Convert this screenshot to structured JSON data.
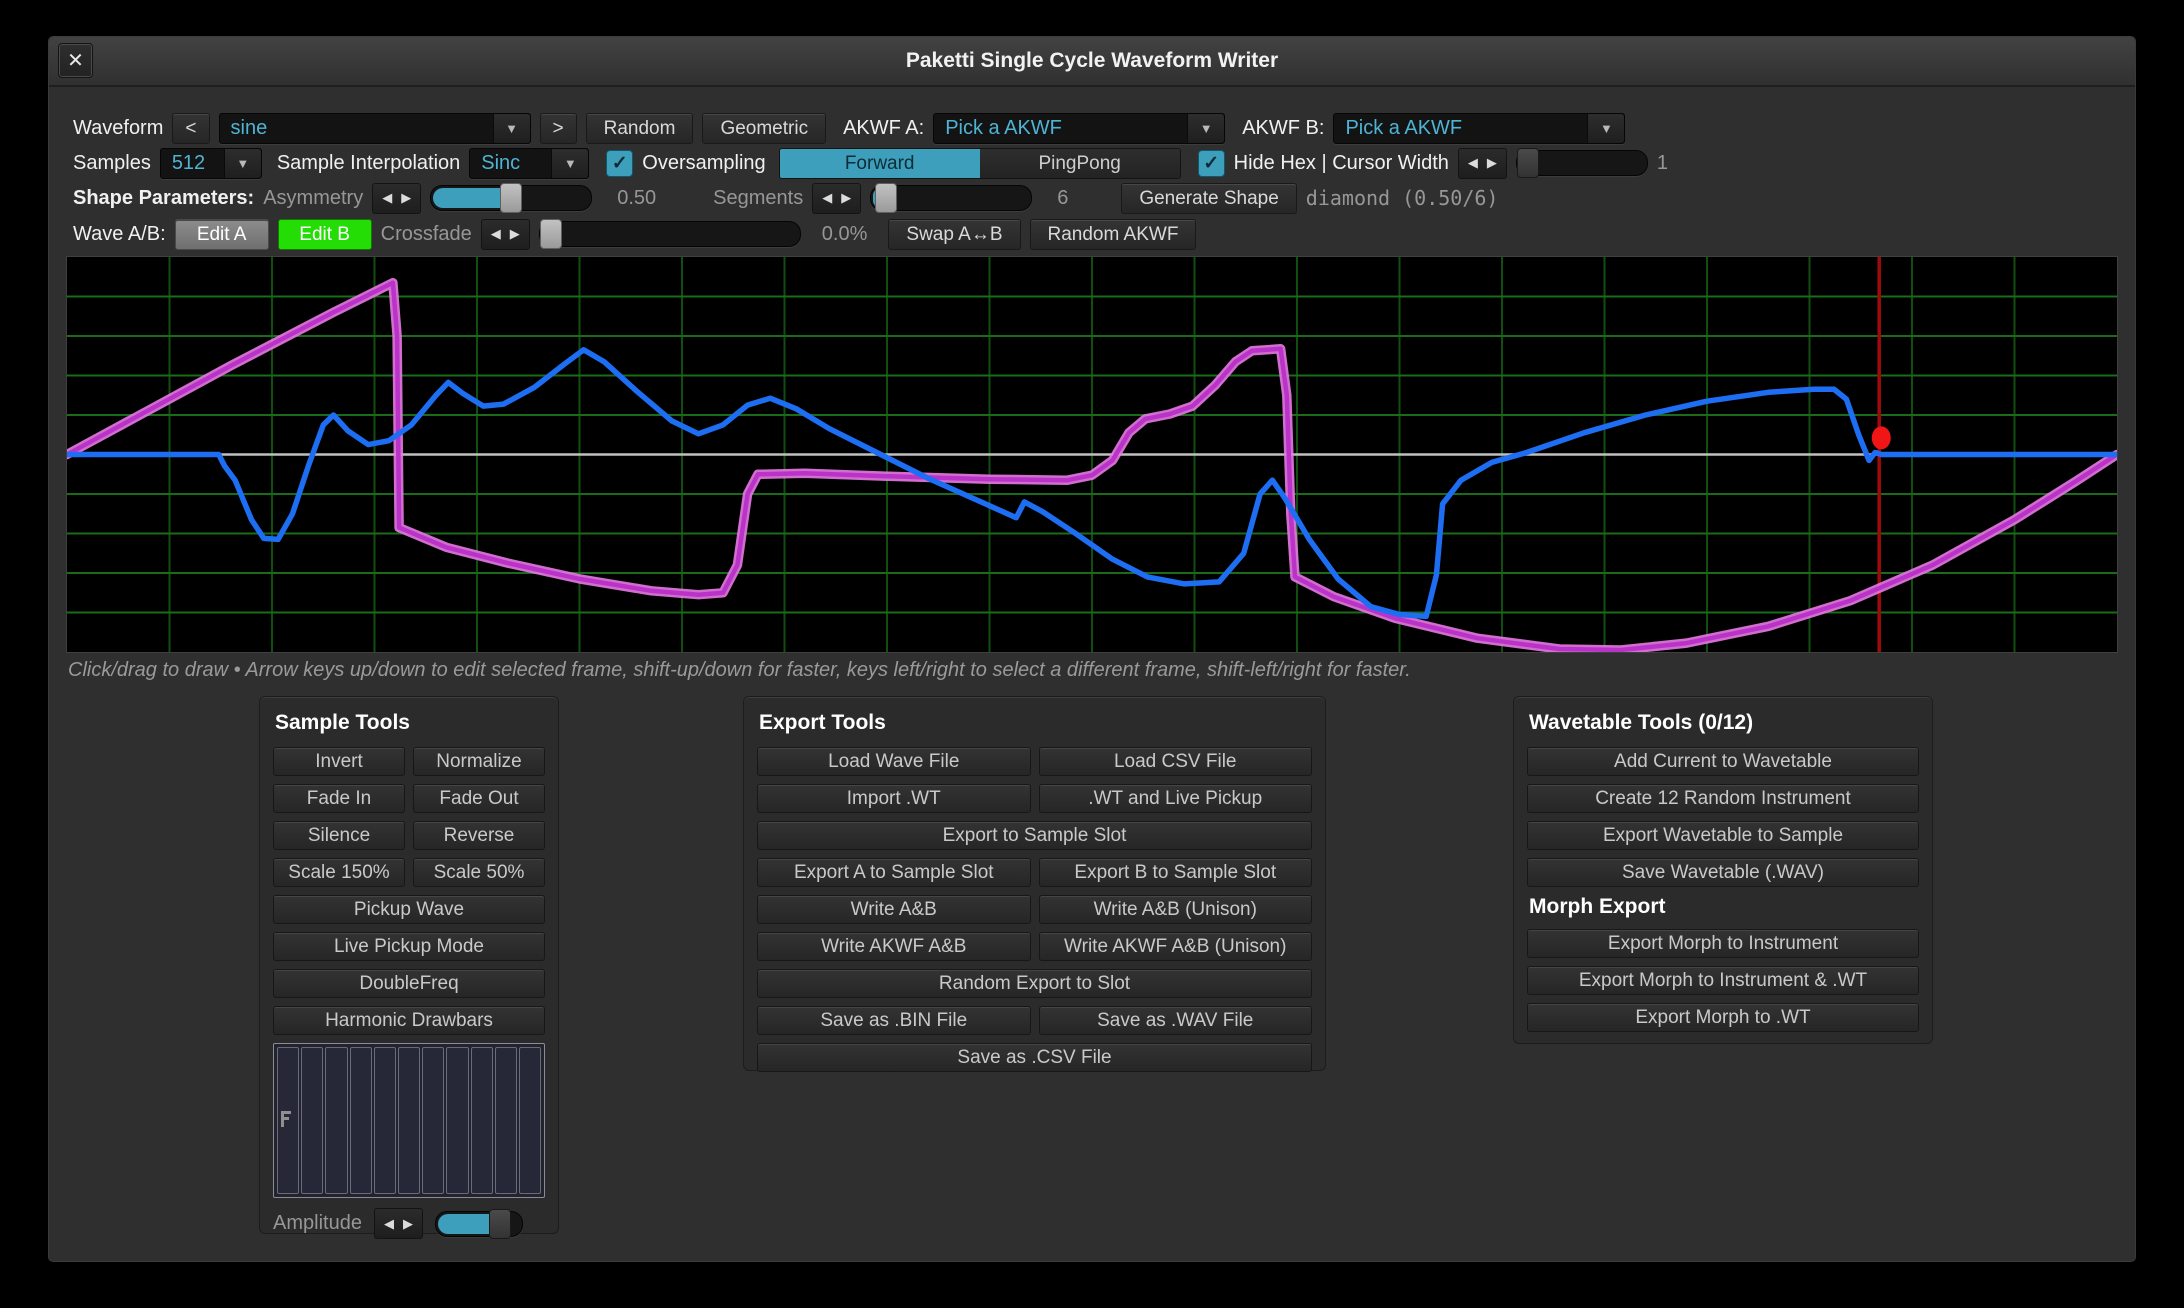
{
  "window": {
    "title": "Paketti Single Cycle Waveform Writer",
    "close_icon": "✕"
  },
  "icons": {
    "dropdown_arrow": "▼",
    "arrow_left": "◀",
    "arrow_right": "▶",
    "check": "✓",
    "prev": "<",
    "next": ">"
  },
  "colors": {
    "accent_teal": "#3d9fbc",
    "value_cyan": "#4fb4d4",
    "edit_a_gray": "#7e7e7e",
    "edit_b_green": "#23dd04",
    "wave_a_blue": "#1d6ef2",
    "wave_b_core": "#b933c9",
    "wave_b_glow": "#e87ae4",
    "cursor_red": "#a00a0a",
    "dot_red": "#f21515",
    "grid_h_green": "#1a6b1a",
    "grid_v_green": "#114f11",
    "center_line": "#c0c0c0"
  },
  "toolbar": {
    "row1": {
      "waveform_label": "Waveform",
      "prev": "<",
      "waveform_value": "sine",
      "next": ">",
      "random": "Random",
      "geometric": "Geometric",
      "akwf_a_label": "AKWF A:",
      "akwf_a_value": "Pick a AKWF",
      "akwf_b_label": "AKWF B:",
      "akwf_b_value": "Pick a AKWF"
    },
    "row2": {
      "samples_label": "Samples",
      "samples_value": "512",
      "interp_label": "Sample Interpolation",
      "interp_value": "Sinc",
      "oversampling_label": "Oversampling",
      "forward": "Forward",
      "pingpong": "PingPong",
      "hidehex_label": "Hide Hex | Cursor Width",
      "cursor_width_value": "1"
    },
    "row3": {
      "label": "Shape Parameters:",
      "asymmetry_label": "Asymmetry",
      "asymmetry_value": "0.50",
      "segments_label": "Segments",
      "segments_value": "6",
      "generate": "Generate Shape",
      "shape_info": "diamond (0.50/6)"
    },
    "row4": {
      "label": "Wave A/B:",
      "edit_a": "Edit A",
      "edit_b": "Edit B",
      "crossfade_label": "Crossfade",
      "crossfade_value": "0.0%",
      "swap": "Swap A↔B",
      "random_akwf": "Random AKWF"
    }
  },
  "sliders": {
    "cursor_width": 0.0,
    "asymmetry": 0.5,
    "segments": 0.09,
    "crossfade": 0.0,
    "amplitude": 0.75
  },
  "canvas": {
    "hint": "Click/drag to draw • Arrow keys up/down to edit selected frame, shift-up/down for faster, keys left/right to select a different frame, shift-left/right for faster.",
    "grid_cols": 20,
    "grid_rows": 10,
    "cursor_x": 0.884,
    "dot": {
      "x": 0.885,
      "amp": 0.084
    },
    "wave_a_points": [
      [
        0.0,
        0.0
      ],
      [
        0.074,
        0.0
      ],
      [
        0.077,
        -0.06
      ],
      [
        0.082,
        -0.13
      ],
      [
        0.09,
        -0.33
      ],
      [
        0.096,
        -0.425
      ],
      [
        0.103,
        -0.43
      ],
      [
        0.11,
        -0.3
      ],
      [
        0.118,
        -0.05
      ],
      [
        0.125,
        0.15
      ],
      [
        0.13,
        0.2
      ],
      [
        0.137,
        0.12
      ],
      [
        0.147,
        0.05
      ],
      [
        0.157,
        0.07
      ],
      [
        0.168,
        0.15
      ],
      [
        0.18,
        0.3
      ],
      [
        0.186,
        0.365
      ],
      [
        0.193,
        0.31
      ],
      [
        0.203,
        0.245
      ],
      [
        0.213,
        0.255
      ],
      [
        0.228,
        0.34
      ],
      [
        0.243,
        0.46
      ],
      [
        0.252,
        0.53
      ],
      [
        0.262,
        0.47
      ],
      [
        0.278,
        0.32
      ],
      [
        0.295,
        0.17
      ],
      [
        0.308,
        0.105
      ],
      [
        0.32,
        0.15
      ],
      [
        0.332,
        0.25
      ],
      [
        0.343,
        0.285
      ],
      [
        0.356,
        0.23
      ],
      [
        0.372,
        0.13
      ],
      [
        0.395,
        0.01
      ],
      [
        0.42,
        -0.12
      ],
      [
        0.448,
        -0.25
      ],
      [
        0.463,
        -0.32
      ],
      [
        0.467,
        -0.24
      ],
      [
        0.476,
        -0.29
      ],
      [
        0.492,
        -0.4
      ],
      [
        0.51,
        -0.53
      ],
      [
        0.527,
        -0.62
      ],
      [
        0.545,
        -0.655
      ],
      [
        0.562,
        -0.645
      ],
      [
        0.574,
        -0.5
      ],
      [
        0.582,
        -0.2
      ],
      [
        0.588,
        -0.13
      ],
      [
        0.594,
        -0.22
      ],
      [
        0.606,
        -0.43
      ],
      [
        0.62,
        -0.63
      ],
      [
        0.636,
        -0.77
      ],
      [
        0.65,
        -0.81
      ],
      [
        0.663,
        -0.82
      ],
      [
        0.668,
        -0.61
      ],
      [
        0.671,
        -0.25
      ],
      [
        0.68,
        -0.13
      ],
      [
        0.695,
        -0.04
      ],
      [
        0.712,
        0.01
      ],
      [
        0.74,
        0.11
      ],
      [
        0.77,
        0.2
      ],
      [
        0.8,
        0.27
      ],
      [
        0.83,
        0.315
      ],
      [
        0.852,
        0.33
      ],
      [
        0.862,
        0.33
      ],
      [
        0.868,
        0.28
      ],
      [
        0.874,
        0.1
      ],
      [
        0.879,
        -0.03
      ],
      [
        0.882,
        0.01
      ],
      [
        0.885,
        0.0
      ],
      [
        1.0,
        0.0
      ]
    ],
    "wave_b_points": [
      [
        0.0,
        0.0
      ],
      [
        0.08,
        0.45
      ],
      [
        0.13,
        0.72
      ],
      [
        0.159,
        0.87
      ],
      [
        0.161,
        0.6
      ],
      [
        0.162,
        -0.37
      ],
      [
        0.185,
        -0.47
      ],
      [
        0.215,
        -0.55
      ],
      [
        0.25,
        -0.63
      ],
      [
        0.285,
        -0.69
      ],
      [
        0.308,
        -0.71
      ],
      [
        0.32,
        -0.7
      ],
      [
        0.327,
        -0.56
      ],
      [
        0.332,
        -0.2
      ],
      [
        0.337,
        -0.1
      ],
      [
        0.36,
        -0.095
      ],
      [
        0.4,
        -0.11
      ],
      [
        0.45,
        -0.125
      ],
      [
        0.488,
        -0.13
      ],
      [
        0.5,
        -0.105
      ],
      [
        0.51,
        -0.03
      ],
      [
        0.518,
        0.11
      ],
      [
        0.526,
        0.18
      ],
      [
        0.538,
        0.205
      ],
      [
        0.549,
        0.245
      ],
      [
        0.56,
        0.35
      ],
      [
        0.57,
        0.47
      ],
      [
        0.578,
        0.525
      ],
      [
        0.592,
        0.535
      ],
      [
        0.595,
        0.3
      ],
      [
        0.597,
        -0.3
      ],
      [
        0.599,
        -0.62
      ],
      [
        0.618,
        -0.72
      ],
      [
        0.648,
        -0.83
      ],
      [
        0.688,
        -0.93
      ],
      [
        0.728,
        -0.985
      ],
      [
        0.758,
        -0.99
      ],
      [
        0.79,
        -0.955
      ],
      [
        0.83,
        -0.87
      ],
      [
        0.87,
        -0.74
      ],
      [
        0.91,
        -0.56
      ],
      [
        0.95,
        -0.33
      ],
      [
        0.98,
        -0.135
      ],
      [
        1.0,
        0.0
      ]
    ]
  },
  "panels": {
    "sample_tools": {
      "title": "Sample Tools",
      "rows": [
        [
          "Invert",
          "Normalize"
        ],
        [
          "Fade In",
          "Fade Out"
        ],
        [
          "Silence",
          "Reverse"
        ],
        [
          "Scale 150%",
          "Scale 50%"
        ],
        [
          "Pickup Wave"
        ],
        [
          "Live Pickup Mode"
        ],
        [
          "DoubleFreq"
        ],
        [
          "Harmonic Drawbars"
        ]
      ],
      "drawbar_count": 11,
      "amplitude_label": "Amplitude"
    },
    "export_tools": {
      "title": "Export Tools",
      "rows": [
        [
          "Load Wave File",
          "Load CSV File"
        ],
        [
          "Import .WT",
          ".WT and Live Pickup"
        ],
        [
          "Export to Sample Slot"
        ],
        [
          "Export A to Sample Slot",
          "Export B to Sample Slot"
        ],
        [
          "Write A&B",
          "Write A&B (Unison)"
        ],
        [
          "Write AKWF A&B",
          "Write AKWF A&B (Unison)"
        ],
        [
          "Random Export to Slot"
        ],
        [
          "Save as .BIN File",
          "Save as .WAV File"
        ],
        [
          "Save as .CSV File"
        ]
      ]
    },
    "wavetable_tools": {
      "title": "Wavetable Tools (0/12)",
      "rows_top": [
        [
          "Add Current to Wavetable"
        ],
        [
          "Create 12 Random Instrument"
        ],
        [
          "Export Wavetable to Sample"
        ],
        [
          "Save Wavetable (.WAV)"
        ]
      ],
      "morph_header": "Morph Export",
      "rows_morph": [
        [
          "Export Morph to Instrument"
        ],
        [
          "Export Morph to Instrument & .WT"
        ],
        [
          "Export Morph to .WT"
        ]
      ]
    }
  }
}
